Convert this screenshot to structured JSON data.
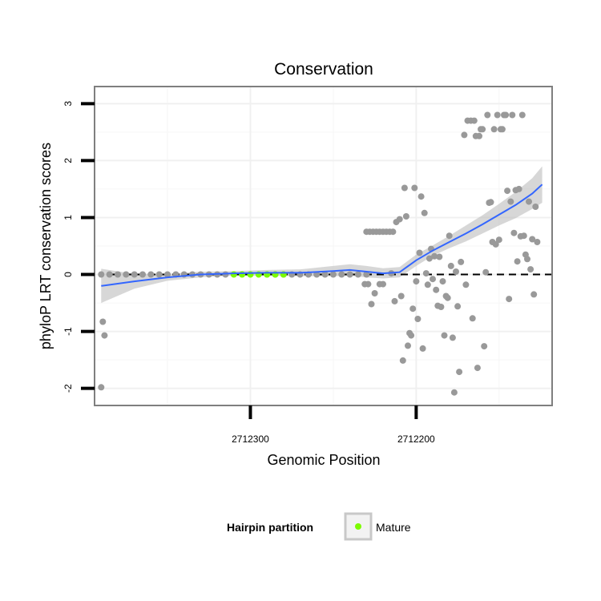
{
  "chart_data": {
    "type": "scatter",
    "title": "Conservation",
    "xlabel": "Genomic Position",
    "ylabel": "phyloP LRT conservation scores",
    "x_reversed": true,
    "xlim": [
      2712394,
      2712118
    ],
    "ylim": [
      -2.3,
      3.3
    ],
    "x_ticks": [
      2712300,
      2712200
    ],
    "x_tick_labels": [
      "2712300",
      "2712200"
    ],
    "y_ticks": [
      -2,
      -1,
      0,
      1,
      2,
      3
    ],
    "y_tick_labels": [
      "-2",
      "-1",
      "0",
      "1",
      "2",
      "3"
    ],
    "grid": true,
    "reference_line": {
      "y": 0,
      "style": "dashed"
    },
    "legend": {
      "title": "Hairpin partition",
      "entries": [
        {
          "label": "Mature",
          "color": "#7CFC00"
        }
      ],
      "position": "bottom"
    },
    "colors": {
      "points": "#999999",
      "mature": "#7CFC00",
      "smooth": "#3366FF",
      "ribbon": "#BDBDBD",
      "panel_border": "#7F7F7F"
    },
    "series": [
      {
        "name": "Hairpin",
        "points": [
          [
            2712390,
            -1.98
          ],
          [
            2712389,
            -0.83
          ],
          [
            2712388,
            -1.07
          ],
          [
            2712390,
            0
          ],
          [
            2712385,
            0
          ],
          [
            2712380,
            0
          ],
          [
            2712375,
            0
          ],
          [
            2712370,
            0
          ],
          [
            2712365,
            0
          ],
          [
            2712360,
            0
          ],
          [
            2712355,
            0
          ],
          [
            2712350,
            0
          ],
          [
            2712345,
            0
          ],
          [
            2712340,
            0
          ],
          [
            2712335,
            0
          ],
          [
            2712330,
            0
          ],
          [
            2712325,
            0
          ],
          [
            2712320,
            0
          ],
          [
            2712315,
            0
          ],
          [
            2712290,
            0
          ],
          [
            2712285,
            0
          ],
          [
            2712280,
            0
          ],
          [
            2712275,
            0
          ],
          [
            2712270,
            0
          ],
          [
            2712265,
            0
          ],
          [
            2712260,
            0
          ],
          [
            2712255,
            0
          ],
          [
            2712250,
            0
          ],
          [
            2712245,
            0
          ],
          [
            2712240,
            0
          ],
          [
            2712235,
            0
          ],
          [
            2712230,
            0
          ],
          [
            2712231,
            -0.17
          ],
          [
            2712229,
            -0.17
          ],
          [
            2712227,
            -0.52
          ],
          [
            2712225,
            -0.33
          ],
          [
            2712222,
            -0.17
          ],
          [
            2712220,
            -0.17
          ],
          [
            2712230,
            0.75
          ],
          [
            2712228,
            0.75
          ],
          [
            2712226,
            0.75
          ],
          [
            2712224,
            0.75
          ],
          [
            2712222,
            0.75
          ],
          [
            2712220,
            0.75
          ],
          [
            2712218,
            0.75
          ],
          [
            2712216,
            0.75
          ],
          [
            2712214,
            0.75
          ],
          [
            2712215,
            0.02
          ],
          [
            2712213,
            -0.47
          ],
          [
            2712212,
            0.92
          ],
          [
            2712210,
            0.97
          ],
          [
            2712209,
            -0.38
          ],
          [
            2712208,
            -1.51
          ],
          [
            2712207,
            1.52
          ],
          [
            2712206,
            1.02
          ],
          [
            2712205,
            -1.25
          ],
          [
            2712204,
            -1.03
          ],
          [
            2712203,
            -1.07
          ],
          [
            2712202,
            -0.6
          ],
          [
            2712201,
            1.52
          ],
          [
            2712200,
            -0.12
          ],
          [
            2712199,
            -0.78
          ],
          [
            2712198,
            0.38
          ],
          [
            2712197,
            1.37
          ],
          [
            2712196,
            -1.3
          ],
          [
            2712195,
            1.08
          ],
          [
            2712194,
            0.02
          ],
          [
            2712193,
            -0.18
          ],
          [
            2712192,
            0.28
          ],
          [
            2712191,
            0.45
          ],
          [
            2712190,
            -0.08
          ],
          [
            2712189,
            0.32
          ],
          [
            2712188,
            -0.27
          ],
          [
            2712187,
            -0.55
          ],
          [
            2712186,
            0.31
          ],
          [
            2712185,
            -0.57
          ],
          [
            2712184,
            -0.12
          ],
          [
            2712183,
            -1.07
          ],
          [
            2712182,
            -0.38
          ],
          [
            2712181,
            -0.41
          ],
          [
            2712180,
            0.68
          ],
          [
            2712179,
            0.15
          ],
          [
            2712178,
            -1.11
          ],
          [
            2712177,
            -2.07
          ],
          [
            2712176,
            0.05
          ],
          [
            2712175,
            -0.56
          ],
          [
            2712174,
            -1.71
          ],
          [
            2712173,
            0.22
          ],
          [
            2712171,
            2.45
          ],
          [
            2712170,
            -0.18
          ],
          [
            2712169,
            2.7
          ],
          [
            2712167,
            2.7
          ],
          [
            2712166,
            -0.77
          ],
          [
            2712165,
            2.7
          ],
          [
            2712164,
            2.43
          ],
          [
            2712163,
            -1.64
          ],
          [
            2712162,
            2.43
          ],
          [
            2712161,
            2.55
          ],
          [
            2712160,
            2.55
          ],
          [
            2712159,
            -1.26
          ],
          [
            2712158,
            0.04
          ],
          [
            2712157,
            2.8
          ],
          [
            2712156,
            1.26
          ],
          [
            2712155,
            1.27
          ],
          [
            2712154,
            0.57
          ],
          [
            2712153,
            2.55
          ],
          [
            2712152,
            0.53
          ],
          [
            2712151,
            2.8
          ],
          [
            2712150,
            0.61
          ],
          [
            2712149,
            2.55
          ],
          [
            2712148,
            2.55
          ],
          [
            2712147,
            2.8
          ],
          [
            2712146,
            2.8
          ],
          [
            2712145,
            1.47
          ],
          [
            2712144,
            -0.43
          ],
          [
            2712143,
            1.28
          ],
          [
            2712142,
            2.8
          ],
          [
            2712141,
            0.73
          ],
          [
            2712140,
            1.48
          ],
          [
            2712139,
            0.23
          ],
          [
            2712138,
            1.5
          ],
          [
            2712137,
            0.67
          ],
          [
            2712136,
            2.8
          ],
          [
            2712135,
            0.68
          ],
          [
            2712134,
            0.35
          ],
          [
            2712133,
            0.27
          ],
          [
            2712132,
            1.28
          ],
          [
            2712131,
            0.09
          ],
          [
            2712130,
            0.62
          ],
          [
            2712129,
            -0.35
          ],
          [
            2712128,
            1.19
          ],
          [
            2712127,
            0.57
          ]
        ]
      },
      {
        "name": "Mature",
        "points": [
          [
            2712310,
            0
          ],
          [
            2712305,
            0
          ],
          [
            2712300,
            0
          ],
          [
            2712295,
            0
          ],
          [
            2712290,
            0
          ],
          [
            2712285,
            0
          ],
          [
            2712280,
            0
          ]
        ]
      }
    ],
    "smooth": {
      "x": [
        2712390,
        2712370,
        2712350,
        2712330,
        2712310,
        2712290,
        2712270,
        2712250,
        2712240,
        2712230,
        2712220,
        2712210,
        2712200,
        2712190,
        2712180,
        2712170,
        2712160,
        2712150,
        2712140,
        2712130,
        2712124
      ],
      "y": [
        -0.2,
        -0.12,
        -0.05,
        0.0,
        0.02,
        0.03,
        0.03,
        0.06,
        0.08,
        0.05,
        0.02,
        0.04,
        0.25,
        0.42,
        0.57,
        0.72,
        0.88,
        1.05,
        1.22,
        1.42,
        1.58
      ],
      "lo": [
        -0.5,
        -0.25,
        -0.11,
        -0.05,
        -0.02,
        -0.02,
        -0.03,
        -0.03,
        -0.02,
        -0.05,
        -0.07,
        -0.05,
        0.15,
        0.33,
        0.46,
        0.58,
        0.72,
        0.86,
        0.99,
        1.15,
        1.26
      ],
      "hi": [
        0.1,
        0.01,
        0.01,
        0.05,
        0.06,
        0.08,
        0.09,
        0.15,
        0.18,
        0.15,
        0.11,
        0.13,
        0.35,
        0.51,
        0.68,
        0.86,
        1.04,
        1.24,
        1.45,
        1.69,
        1.9
      ]
    }
  }
}
